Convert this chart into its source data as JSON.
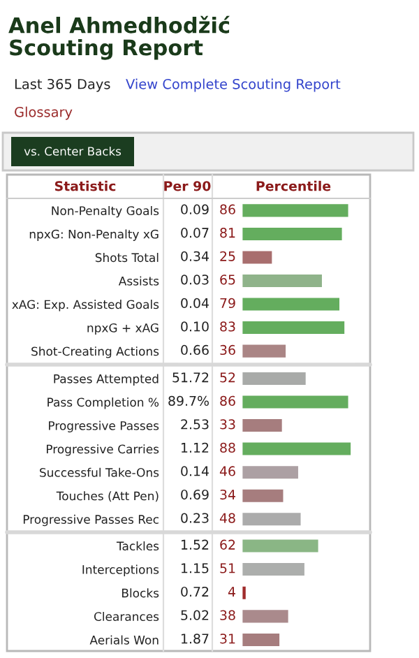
{
  "chart_data": [
    {
      "type": "other",
      "title": "Anel Ahmedhodžić\nScouting Report",
      "annotations": [
        "Last 365 Days",
        "View Complete Scouting Report",
        "Glossary",
        "vs. Center Backs",
        "Statistic",
        "Per 90",
        "Percentile"
      ]
    },
    {
      "type": "bar",
      "orientation": "horizontal",
      "categories": [
        "Non-Penalty Goals",
        "npxG: Non-Penalty xG",
        "Shots Total",
        "Assists",
        "xAG: Exp. Assisted Goals",
        "npxG + xAG",
        "Shot-Creating Actions"
      ],
      "values": [
        86,
        81,
        25,
        65,
        79,
        83,
        36
      ],
      "colors": [
        "#64ad5e",
        "#64ad5e",
        "#a86e6e",
        "#8fb38a",
        "#64ad5e",
        "#64ad5e",
        "#aa8585"
      ],
      "data_labels": true,
      "xlim": [
        0,
        100
      ],
      "tick_labels": "y",
      "annotations": [
        "0.09",
        "0.07",
        "0.34",
        "0.03",
        "0.04",
        "0.10",
        "0.66"
      ]
    },
    {
      "type": "bar",
      "orientation": "horizontal",
      "categories": [
        "Passes Attempted",
        "Pass Completion %",
        "Progressive Passes",
        "Progressive Carries",
        "Successful Take-Ons",
        "Touches (Att Pen)",
        "Progressive Passes Rec"
      ],
      "values": [
        52,
        86,
        33,
        88,
        46,
        34,
        48
      ],
      "colors": [
        "#a8aaa8",
        "#64ad5e",
        "#a67d7e",
        "#64ad5e",
        "#aca0a3",
        "#a67d7e",
        "#ababab"
      ],
      "data_labels": true,
      "xlim": [
        0,
        100
      ],
      "tick_labels": "y",
      "annotations": [
        "51.72",
        "89.7%",
        "2.53",
        "1.12",
        "0.14",
        "0.69",
        "0.23"
      ]
    },
    {
      "type": "bar",
      "orientation": "horizontal",
      "categories": [
        "Tackles",
        "Interceptions",
        "Blocks",
        "Clearances",
        "Aerials Won"
      ],
      "values": [
        62,
        51,
        4,
        38,
        31
      ],
      "colors": [
        "#8ab685",
        "#acaeac",
        "#a02c2c",
        "#aa8a8c",
        "#a67d7e"
      ],
      "data_labels": true,
      "xlim": [
        0,
        100
      ],
      "tick_labels": "y",
      "annotations": [
        "1.52",
        "1.15",
        "0.72",
        "5.02",
        "1.87"
      ]
    }
  ]
}
